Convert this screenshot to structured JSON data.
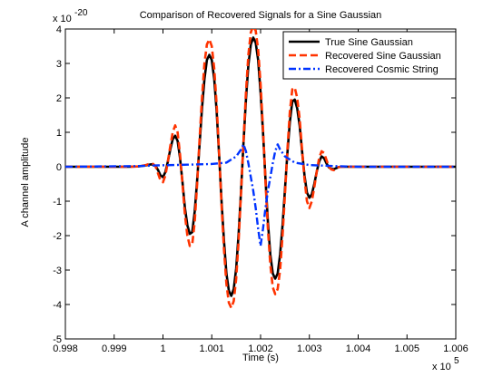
{
  "chart_data": {
    "type": "line",
    "title": "Comparison of Recovered Signals for a Sine Gaussian",
    "xlabel": "Time (s)",
    "ylabel": "A channel amplitude",
    "x_exponent_label": "x 10",
    "x_exponent_power": "5",
    "y_exponent_label": "x 10",
    "y_exponent_power": "-20",
    "xlim": [
      0.998,
      1.006
    ],
    "ylim": [
      -5,
      4
    ],
    "x_unit_scale": 100000,
    "y_unit_scale": 1e-20,
    "xticks": [
      0.998,
      0.999,
      1,
      1.001,
      1.002,
      1.003,
      1.004,
      1.005,
      1.006
    ],
    "xtick_labels": [
      "0.998",
      "0.999",
      "1",
      "1.001",
      "1.002",
      "1.003",
      "1.004",
      "1.005",
      "1.006"
    ],
    "yticks": [
      4,
      3,
      2,
      1,
      0,
      -1,
      -2,
      -3,
      -4,
      -5
    ],
    "ytick_labels": [
      "4",
      "3",
      "2",
      "1",
      "0",
      "-1",
      "-2",
      "-3",
      "-4",
      "-5"
    ],
    "grid": false,
    "legend_position": "top-right",
    "series": [
      {
        "name": "True Sine Gaussian",
        "color": "#000000",
        "style": "solid",
        "x": [
          0.998,
          0.9993,
          0.9995,
          0.99965,
          0.99975,
          0.9998,
          0.99985,
          0.9999,
          0.99995,
          1.0,
          1.00005,
          1.0001,
          1.00015,
          1.0002,
          1.00025,
          1.0003,
          1.00035,
          1.0004,
          1.00045,
          1.0005,
          1.00055,
          1.0006,
          1.00065,
          1.0007,
          1.00075,
          1.0008,
          1.00085,
          1.0009,
          1.00095,
          1.001,
          1.00105,
          1.0011,
          1.00115,
          1.0012,
          1.00125,
          1.0013,
          1.00135,
          1.0014,
          1.00145,
          1.0015,
          1.00155,
          1.0016,
          1.00165,
          1.0017,
          1.00175,
          1.0018,
          1.00185,
          1.0019,
          1.00195,
          1.002,
          1.00205,
          1.0021,
          1.00215,
          1.0022,
          1.00225,
          1.0023,
          1.00235,
          1.0024,
          1.00245,
          1.0025,
          1.00255,
          1.0026,
          1.00265,
          1.0027,
          1.00275,
          1.0028,
          1.00285,
          1.0029,
          1.00295,
          1.003,
          1.00305,
          1.0031,
          1.00315,
          1.0032,
          1.00325,
          1.0033,
          1.00335,
          1.0034,
          1.00345,
          1.0035,
          1.00355,
          1.0036,
          1.00365,
          1.0037,
          1.00375,
          1.0038,
          1.00385,
          1.0039,
          1.00395,
          1.004,
          1.00405,
          1.0041,
          1.00425,
          1.0045,
          1.0047,
          1.006
        ],
        "y": [
          0,
          0,
          0.01,
          0.04,
          0.07,
          0.06,
          0.02,
          -0.1,
          -0.25,
          -0.3,
          -0.15,
          0.15,
          0.5,
          0.8,
          0.9,
          0.75,
          0.25,
          -0.45,
          -1.2,
          -1.7,
          -1.95,
          -1.9,
          -1.3,
          -0.4,
          0.65,
          1.7,
          2.55,
          3.1,
          3.25,
          3.1,
          2.55,
          1.6,
          0.35,
          -1.0,
          -2.15,
          -3.1,
          -3.6,
          -3.75,
          -3.55,
          -2.95,
          -1.95,
          -0.7,
          0.7,
          1.95,
          2.95,
          3.55,
          3.75,
          3.6,
          3.1,
          2.15,
          1.0,
          -0.35,
          -1.6,
          -2.55,
          -3.1,
          -3.25,
          -3.1,
          -2.55,
          -1.7,
          -0.65,
          0.4,
          1.3,
          1.9,
          1.95,
          1.7,
          1.2,
          0.45,
          -0.25,
          -0.75,
          -0.9,
          -0.8,
          -0.5,
          -0.15,
          0.15,
          0.3,
          0.25,
          0.1,
          -0.02,
          -0.06,
          -0.07,
          -0.04,
          -0.01,
          0,
          0,
          0,
          0,
          0,
          0,
          0,
          0,
          0,
          0,
          0,
          0,
          0,
          0
        ]
      },
      {
        "name": "Recovered Sine Gaussian",
        "color": "#ff3300",
        "style": "dashed",
        "x": [
          0.998,
          0.9993,
          0.9995,
          0.99965,
          0.99975,
          0.9998,
          0.99985,
          0.9999,
          0.99995,
          1.0,
          1.00005,
          1.0001,
          1.00015,
          1.0002,
          1.00025,
          1.0003,
          1.00035,
          1.0004,
          1.00045,
          1.0005,
          1.00055,
          1.0006,
          1.00065,
          1.0007,
          1.00075,
          1.0008,
          1.00085,
          1.0009,
          1.00095,
          1.001,
          1.00105,
          1.0011,
          1.00115,
          1.0012,
          1.00125,
          1.0013,
          1.00135,
          1.0014,
          1.00145,
          1.0015,
          1.00155,
          1.0016,
          1.00165,
          1.0017,
          1.00175,
          1.0018,
          1.00185,
          1.0019,
          1.00195,
          1.002,
          1.00205,
          1.0021,
          1.00215,
          1.0022,
          1.00225,
          1.0023,
          1.00235,
          1.0024,
          1.00245,
          1.0025,
          1.00255,
          1.0026,
          1.00265,
          1.0027,
          1.00275,
          1.0028,
          1.00285,
          1.0029,
          1.00295,
          1.003,
          1.00305,
          1.0031,
          1.00315,
          1.0032,
          1.00325,
          1.0033,
          1.00335,
          1.0034,
          1.00345,
          1.0035,
          1.00355,
          1.0036,
          1.00365,
          1.0037,
          1.00375,
          1.0038,
          1.00385,
          1.0039,
          1.00395,
          1.004,
          1.00405,
          1.0041,
          1.00425,
          1.0045,
          1.0047,
          1.006
        ],
        "y": [
          0,
          0,
          0.01,
          0.05,
          0.1,
          0.08,
          0.0,
          -0.2,
          -0.4,
          -0.45,
          -0.25,
          0.15,
          0.6,
          1.0,
          1.2,
          1.0,
          0.35,
          -0.5,
          -1.4,
          -2.0,
          -2.3,
          -2.25,
          -1.6,
          -0.5,
          0.8,
          2.0,
          3.0,
          3.55,
          3.7,
          3.5,
          2.85,
          1.8,
          0.4,
          -1.1,
          -2.4,
          -3.4,
          -3.95,
          -4.1,
          -3.9,
          -3.25,
          -2.15,
          -0.75,
          0.75,
          2.15,
          3.25,
          3.9,
          4.1,
          3.95,
          3.4,
          2.4,
          1.1,
          -0.4,
          -1.8,
          -2.85,
          -3.5,
          -3.7,
          -3.55,
          -3.0,
          -2.0,
          -0.8,
          0.5,
          1.6,
          2.25,
          2.3,
          2.0,
          1.4,
          0.5,
          -0.35,
          -1.0,
          -1.2,
          -1.0,
          -0.6,
          -0.15,
          0.25,
          0.45,
          0.4,
          0.2,
          0.0,
          -0.08,
          -0.1,
          -0.05,
          -0.01,
          0,
          0,
          0,
          0,
          0,
          0,
          0,
          0,
          0,
          0,
          0,
          0,
          0,
          0
        ]
      },
      {
        "name": "Recovered Cosmic String",
        "color": "#0033ff",
        "style": "dashdot",
        "x": [
          0.998,
          0.9995,
          0.9999,
          1.0005,
          1.001,
          1.0013,
          1.0015,
          1.0016,
          1.00165,
          1.0017,
          1.00175,
          1.0018,
          1.00185,
          1.0019,
          1.00195,
          1.00198,
          1.002,
          1.00202,
          1.00205,
          1.0021,
          1.00215,
          1.0022,
          1.00225,
          1.0023,
          1.00235,
          1.0024,
          1.0025,
          1.0027,
          1.003,
          1.0035,
          1.004,
          1.006
        ],
        "y": [
          0,
          0.02,
          0.04,
          0.06,
          0.08,
          0.12,
          0.3,
          0.5,
          0.65,
          0.45,
          0.1,
          -0.3,
          -0.7,
          -1.2,
          -1.8,
          -2.1,
          -2.3,
          -2.1,
          -1.8,
          -1.2,
          -0.7,
          -0.3,
          0.1,
          0.45,
          0.65,
          0.5,
          0.3,
          0.12,
          0.05,
          0.02,
          0.0,
          0
        ]
      }
    ]
  }
}
